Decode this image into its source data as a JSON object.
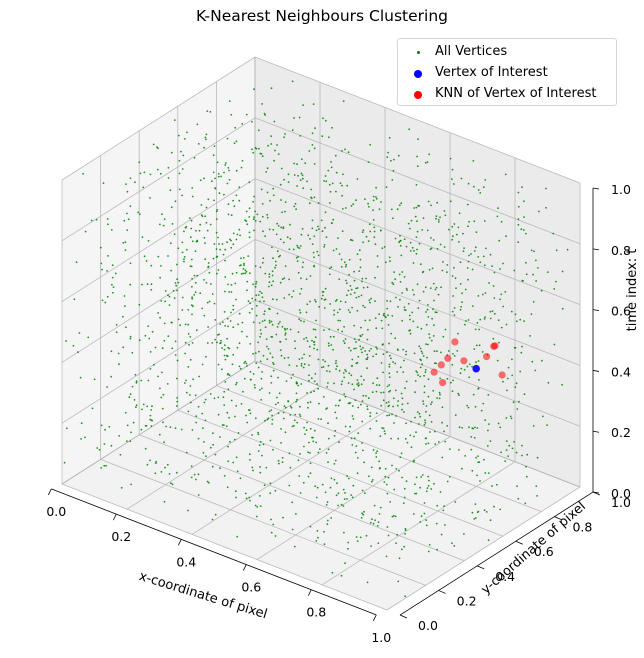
{
  "chart_data": {
    "type": "scatter",
    "title": "K-Nearest Neighbours Clustering",
    "xlabel": "x-coordinate of pixel",
    "ylabel": "y-coordinate of pixel",
    "zlabel": "time index: t",
    "xlim": [
      0,
      1
    ],
    "ylim": [
      0,
      1
    ],
    "zlim": [
      0,
      1
    ],
    "ticks": {
      "x": [
        "0.0",
        "0.2",
        "0.4",
        "0.6",
        "0.8",
        "1.0"
      ],
      "y": [
        "0.0",
        "0.2",
        "0.4",
        "0.6",
        "0.8",
        "1.0"
      ],
      "z": [
        "0.0",
        "0.2",
        "0.4",
        "0.6",
        "0.8",
        "1.0"
      ]
    },
    "grid": true,
    "legend_position": "top-right",
    "legend": [
      {
        "label": "All Vertices",
        "color": "#008000"
      },
      {
        "label": "Vertex of Interest",
        "color": "#0000ff"
      },
      {
        "label": "KNN of Vertex of Interest",
        "color": "#ff0000"
      }
    ],
    "series": [
      {
        "name": "All Vertices",
        "color": "#008000",
        "distribution": "uniform",
        "count": 2000
      },
      {
        "name": "Vertex of Interest",
        "color": "#0000ff",
        "points": [
          [
            0.93,
            0.58,
            0.53
          ]
        ]
      },
      {
        "name": "KNN of Vertex of Interest",
        "color": "#ff0000",
        "points": [
          [
            0.89,
            0.5,
            0.58
          ],
          [
            0.9,
            0.52,
            0.63
          ],
          [
            0.95,
            0.6,
            0.57
          ],
          [
            0.96,
            0.62,
            0.6
          ],
          [
            0.86,
            0.48,
            0.53
          ],
          [
            0.87,
            0.5,
            0.55
          ],
          [
            0.88,
            0.49,
            0.5
          ],
          [
            0.98,
            0.63,
            0.51
          ],
          [
            0.97,
            0.61,
            0.61
          ],
          [
            0.91,
            0.55,
            0.56
          ]
        ]
      }
    ]
  }
}
